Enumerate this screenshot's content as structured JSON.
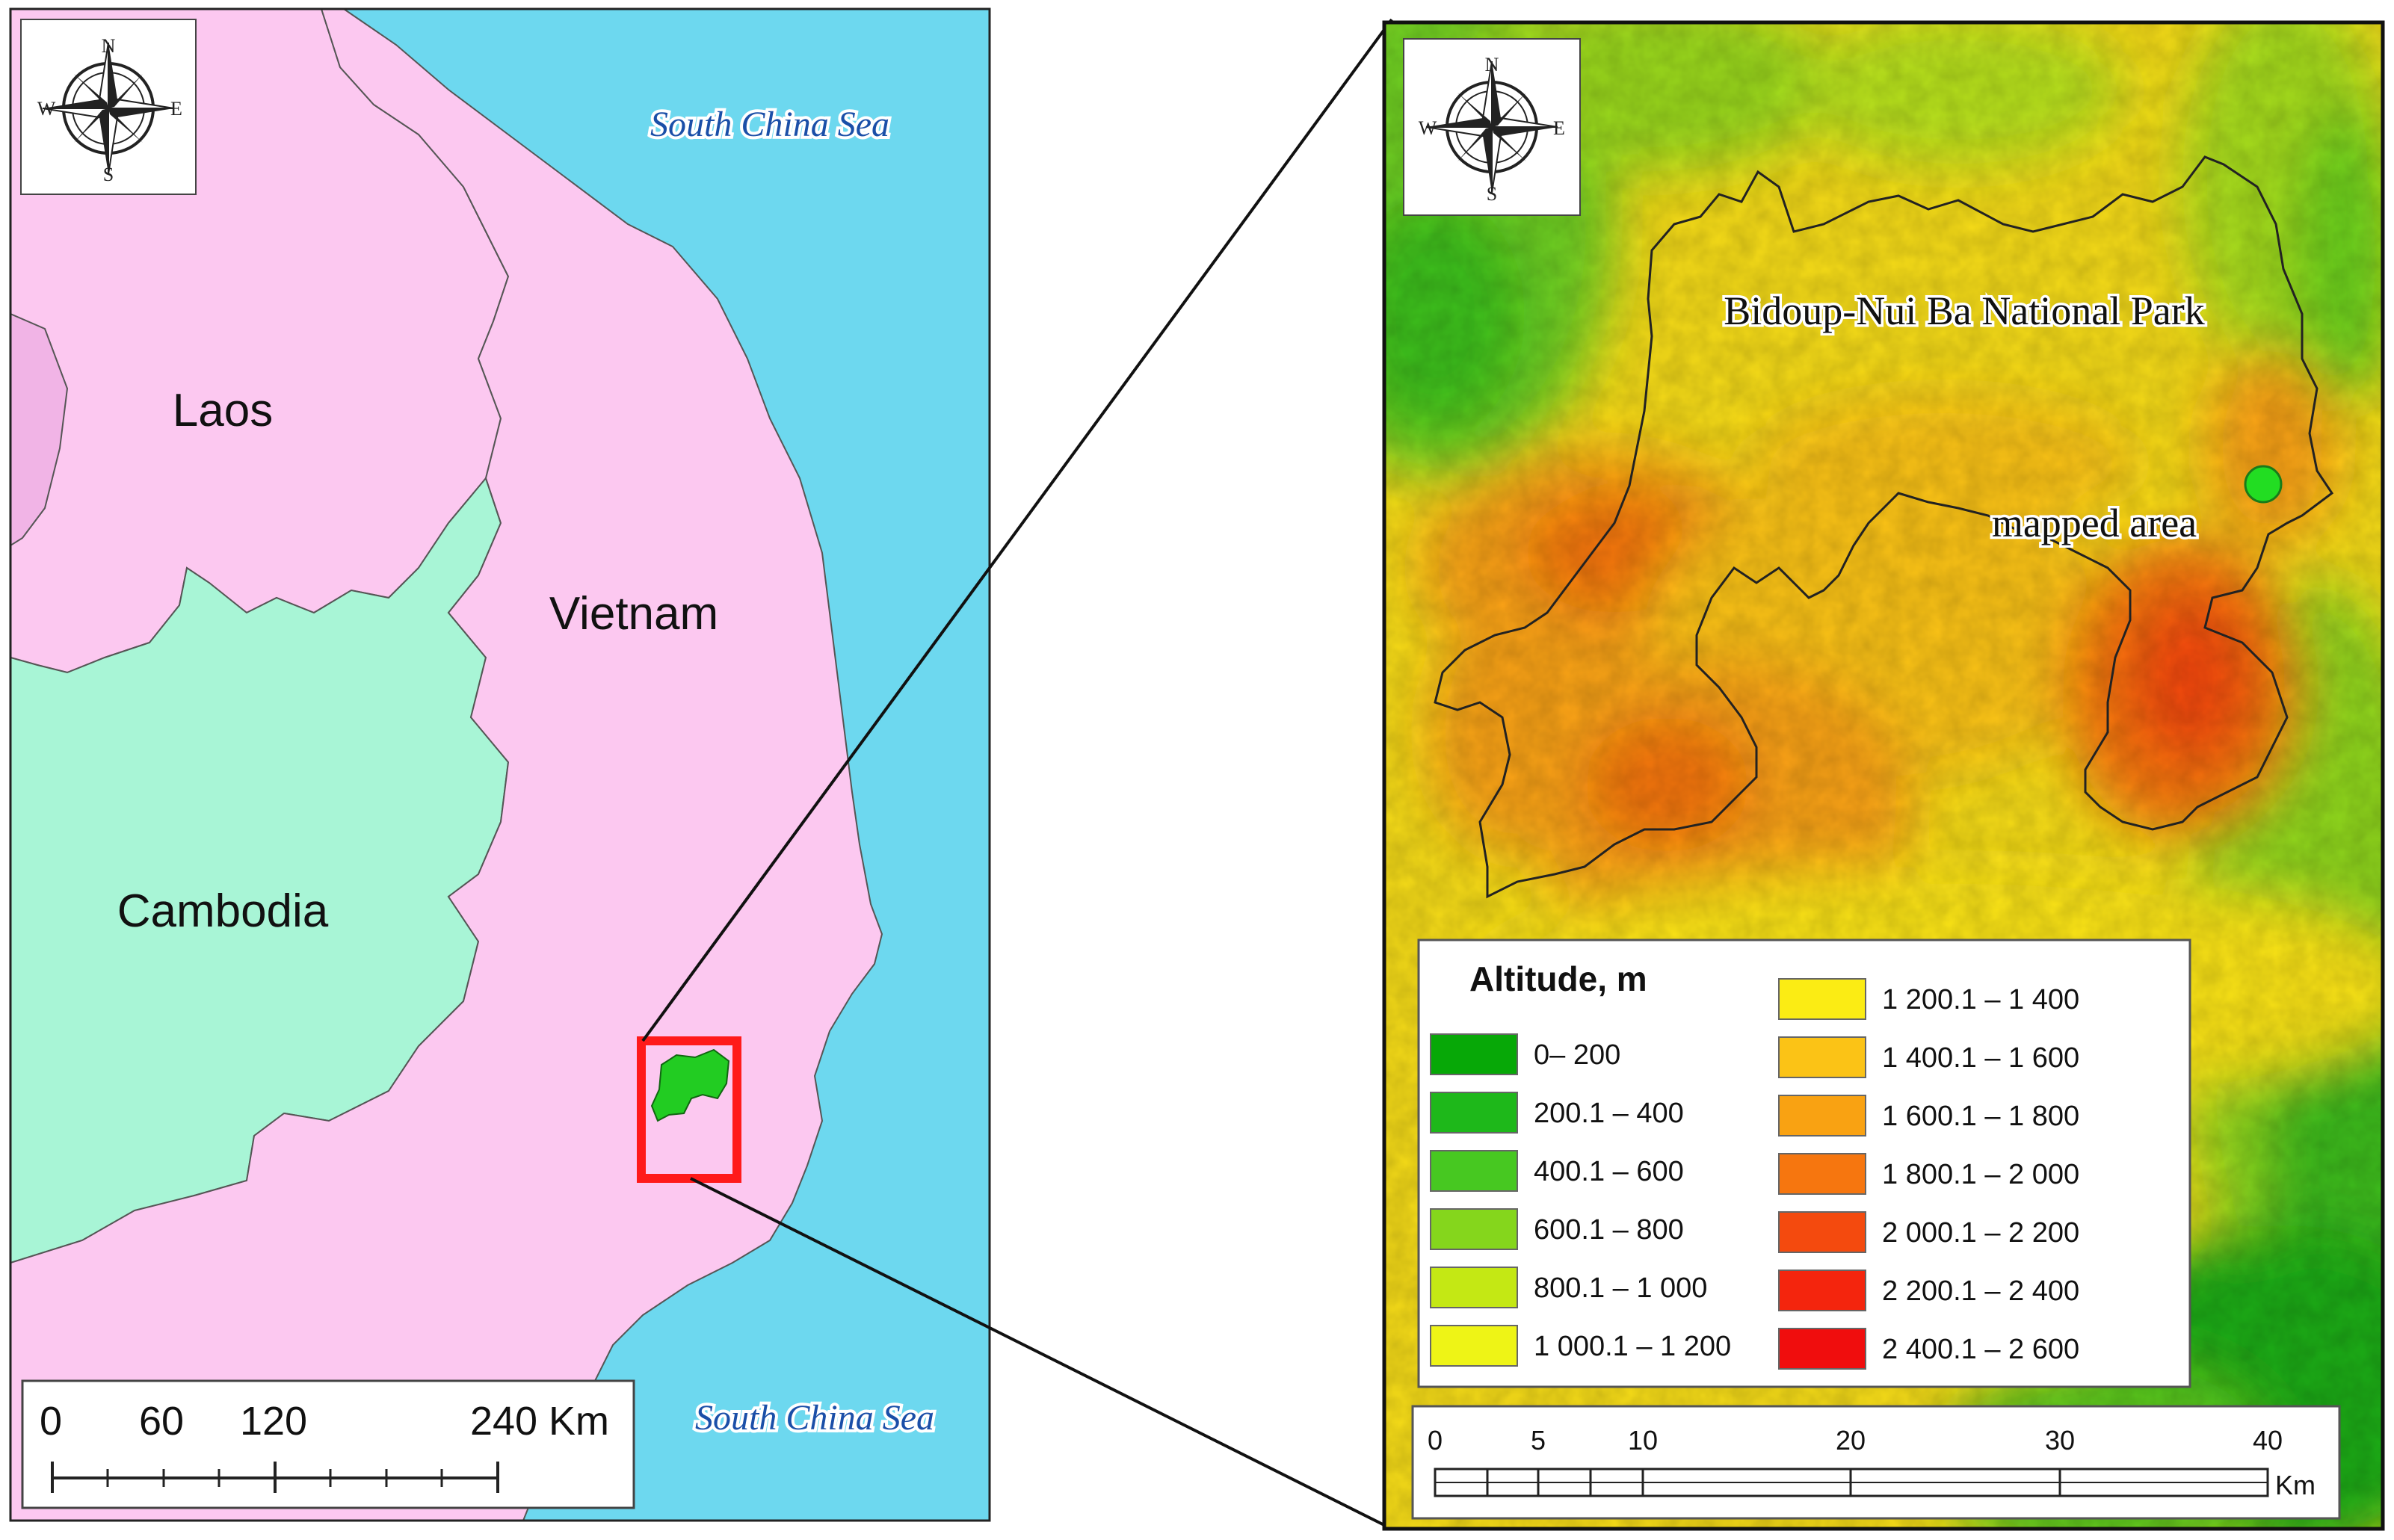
{
  "overview_map": {
    "compass": {
      "n": "N",
      "s": "S",
      "e": "E",
      "w": "W"
    },
    "sea_label_top": "South China Sea",
    "sea_label_bottom": "South China Sea",
    "countries": {
      "laos": "Laos",
      "vietnam": "Vietnam",
      "cambodia": "Cambodia"
    },
    "scale_bar": {
      "ticks": [
        "0",
        "60",
        "120",
        "240 Km"
      ]
    },
    "colors": {
      "sea": "#6dd8ef",
      "vietnam": "#fcc8f0",
      "laos": "#fcc8f0",
      "cambodia": "#a8f5d6",
      "study_box": "#ff1a1a",
      "study_area": "#22cc22"
    }
  },
  "detail_map": {
    "compass": {
      "n": "N",
      "s": "S",
      "e": "E",
      "w": "W"
    },
    "park_label": "Bidoup-Nui Ba National Park",
    "site_label": "mapped area",
    "site_marker_color": "#22dd22",
    "legend": {
      "title": "Altitude, m",
      "classes": [
        {
          "label": "0– 200",
          "color": "#07a807"
        },
        {
          "label": "200.1 – 400",
          "color": "#1eb81a"
        },
        {
          "label": "400.1 – 600",
          "color": "#47c821"
        },
        {
          "label": "600.1 – 800",
          "color": "#85d61c"
        },
        {
          "label": "800.1 – 1 000",
          "color": "#c4e814"
        },
        {
          "label": "1 000.1 – 1 200",
          "color": "#eef416"
        },
        {
          "label": "1 200.1 – 1 400",
          "color": "#fbec14"
        },
        {
          "label": "1 400.1 – 1 600",
          "color": "#fbc316"
        },
        {
          "label": "1 600.1 – 1 800",
          "color": "#f9a212"
        },
        {
          "label": "1 800.1 – 2 000",
          "color": "#f6760f"
        },
        {
          "label": "2 000.1 – 2 200",
          "color": "#f44a0e"
        },
        {
          "label": "2 200.1 – 2 400",
          "color": "#f4250d"
        },
        {
          "label": "2 400.1 – 2 600",
          "color": "#f00d0d"
        }
      ]
    },
    "scale_bar": {
      "ticks": [
        "0",
        "5",
        "10",
        "20",
        "30",
        "40"
      ],
      "unit": "Km"
    }
  }
}
